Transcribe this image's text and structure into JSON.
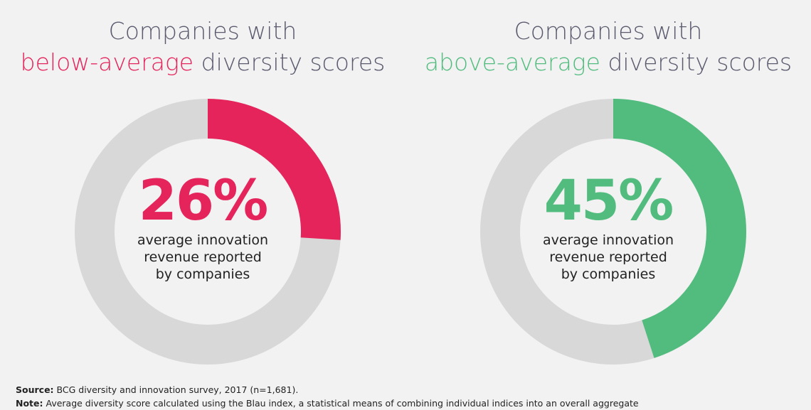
{
  "chart_data": [
    {
      "type": "pie",
      "title_line1": "Companies with",
      "title_highlight": "below-average",
      "title_rest": "diversity scores",
      "value": 26,
      "value_label": "26%",
      "caption": [
        "average innovation",
        "revenue reported",
        "by companies"
      ],
      "colors": {
        "value": "#e5245c",
        "remainder": "#d9d8d8"
      }
    },
    {
      "type": "pie",
      "title_line1": "Companies with",
      "title_highlight": "above-average",
      "title_rest": "diversity scores",
      "value": 45,
      "value_label": "45%",
      "caption": [
        "average innovation",
        "revenue reported",
        "by companies"
      ],
      "colors": {
        "value": "#52bc7f",
        "remainder": "#d9d8d8"
      }
    }
  ],
  "footer": {
    "source_label": "Source:",
    "source_text": "BCG diversity and innovation survey, 2017 (n=1,681).",
    "note_label": "Note:",
    "note_text": "Average diversity score calculated using the Blau index, a statistical means of combining individual indices into an overall aggregate"
  }
}
